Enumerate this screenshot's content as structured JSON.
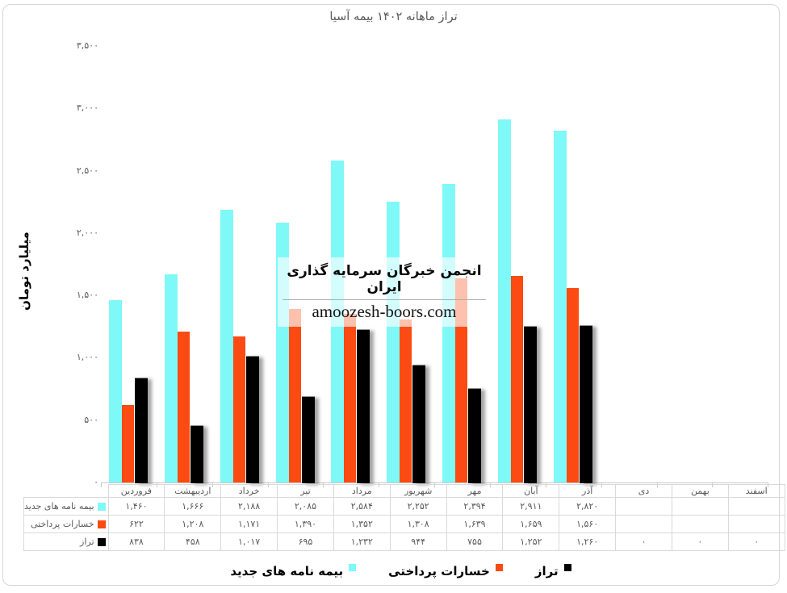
{
  "title": "تراز ماهانه  ۱۴۰۲ بیمه آسیا",
  "y_axis": {
    "title": "میلیارد تومان",
    "tick_labels": [
      "۳,۵۰۰",
      "۳,۰۰۰",
      "۲,۵۰۰",
      "۲,۰۰۰",
      "۱,۵۰۰",
      "۱,۰۰۰",
      "۵۰۰",
      "۰"
    ]
  },
  "watermark": {
    "line1": "انجمن خبرگان سرمایه گذاری ایران",
    "line2": "amoozesh-boors.com"
  },
  "chart_data": {
    "type": "bar",
    "title": "تراز ماهانه  ۱۴۰۲ بیمه آسیا",
    "ylabel": "میلیارد تومان",
    "ylim": [
      0,
      3500
    ],
    "ytick_step": 500,
    "grid": false,
    "legend_position": "bottom",
    "categories": [
      "فروردین",
      "اردیبهشت",
      "خرداد",
      "تیر",
      "مرداد",
      "شهریور",
      "مهر",
      "آبان",
      "آذر",
      "دی",
      "بهمن",
      "اسفند"
    ],
    "series": [
      {
        "name": "بیمه نامه های جدید",
        "key": "new-policies",
        "color": "#7FF8F8",
        "values": [
          1460,
          1666,
          2188,
          2085,
          2584,
          2252,
          2394,
          2911,
          2820,
          null,
          null,
          null
        ],
        "display": [
          "۱,۴۶۰",
          "۱,۶۶۶",
          "۲,۱۸۸",
          "۲,۰۸۵",
          "۲,۵۸۴",
          "۲,۲۵۲",
          "۲,۳۹۴",
          "۲,۹۱۱",
          "۲,۸۲۰",
          "",
          "",
          ""
        ]
      },
      {
        "name": "خسارات پرداختی",
        "key": "paid-claims",
        "color": "#FB4A12",
        "values": [
          622,
          1208,
          1171,
          1390,
          1352,
          1308,
          1639,
          1659,
          1560,
          null,
          null,
          null
        ],
        "display": [
          "۶۲۲",
          "۱,۲۰۸",
          "۱,۱۷۱",
          "۱,۳۹۰",
          "۱,۳۵۲",
          "۱,۳۰۸",
          "۱,۶۳۹",
          "۱,۶۵۹",
          "۱,۵۶۰",
          "",
          "",
          ""
        ]
      },
      {
        "name": "تراز",
        "key": "balance",
        "color": "#000000",
        "values": [
          838,
          458,
          1017,
          695,
          1232,
          944,
          755,
          1252,
          1260,
          0,
          0,
          0
        ],
        "display": [
          "۸۳۸",
          "۴۵۸",
          "۱,۰۱۷",
          "۶۹۵",
          "۱,۲۳۲",
          "۹۴۴",
          "۷۵۵",
          "۱,۲۵۲",
          "۱,۲۶۰",
          "۰",
          "۰",
          "۰"
        ]
      }
    ]
  },
  "legend": {
    "items": [
      {
        "label": "بیمه نامه های جدید",
        "color": "#7FF8F8"
      },
      {
        "label": "خسارات پرداختی",
        "color": "#FB4A12"
      },
      {
        "label": "تراز",
        "color": "#000000"
      }
    ]
  }
}
